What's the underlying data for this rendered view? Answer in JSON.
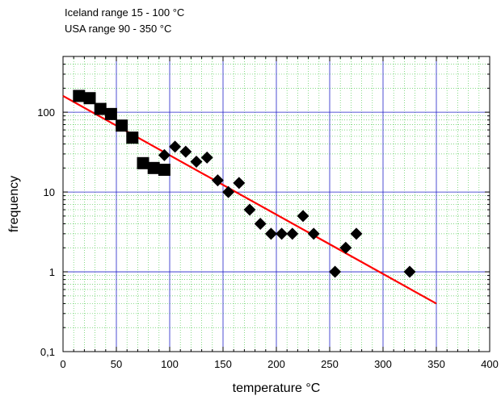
{
  "chart_data": {
    "type": "scatter",
    "annotations": [
      "Iceland  range 15 - 100 °C",
      "USA  range 90 - 350 °C"
    ],
    "xlabel": "temperature  °C",
    "ylabel": "frequency",
    "xlim": [
      0,
      400
    ],
    "ylim": [
      0.1,
      500
    ],
    "yscale": "log",
    "x_ticks": [
      0,
      50,
      100,
      150,
      200,
      250,
      300,
      350,
      400
    ],
    "x_tick_labels": [
      "0",
      "50",
      "100",
      "150",
      "200",
      "250",
      "300",
      "350",
      "400"
    ],
    "y_ticks": [
      0.1,
      1,
      10,
      100
    ],
    "y_tick_labels": [
      "0,1",
      "1",
      "10",
      "100"
    ],
    "grid": true,
    "series": [
      {
        "marker": "square",
        "x": [
          15,
          25,
          35,
          45,
          55,
          65,
          75,
          85,
          95
        ],
        "y": [
          160,
          150,
          110,
          95,
          68,
          48,
          23,
          20,
          19
        ]
      },
      {
        "marker": "diamond",
        "x": [
          95,
          105,
          115,
          125,
          135,
          145,
          155,
          165,
          175,
          185,
          195,
          205,
          215,
          225,
          235,
          255,
          265,
          275,
          325
        ],
        "y": [
          29,
          37,
          32,
          24,
          27,
          14,
          10,
          13,
          6,
          4,
          3,
          3,
          3,
          5,
          3,
          1,
          2,
          3,
          1
        ]
      }
    ],
    "fit_line": {
      "x": [
        0,
        350
      ],
      "y": [
        160,
        0.4
      ],
      "color": "#ff0000"
    },
    "colors": {
      "markers": "#000000",
      "major_grid": "#2020c8",
      "minor_grid": "#55cc55",
      "fit": "#ff0000"
    }
  }
}
